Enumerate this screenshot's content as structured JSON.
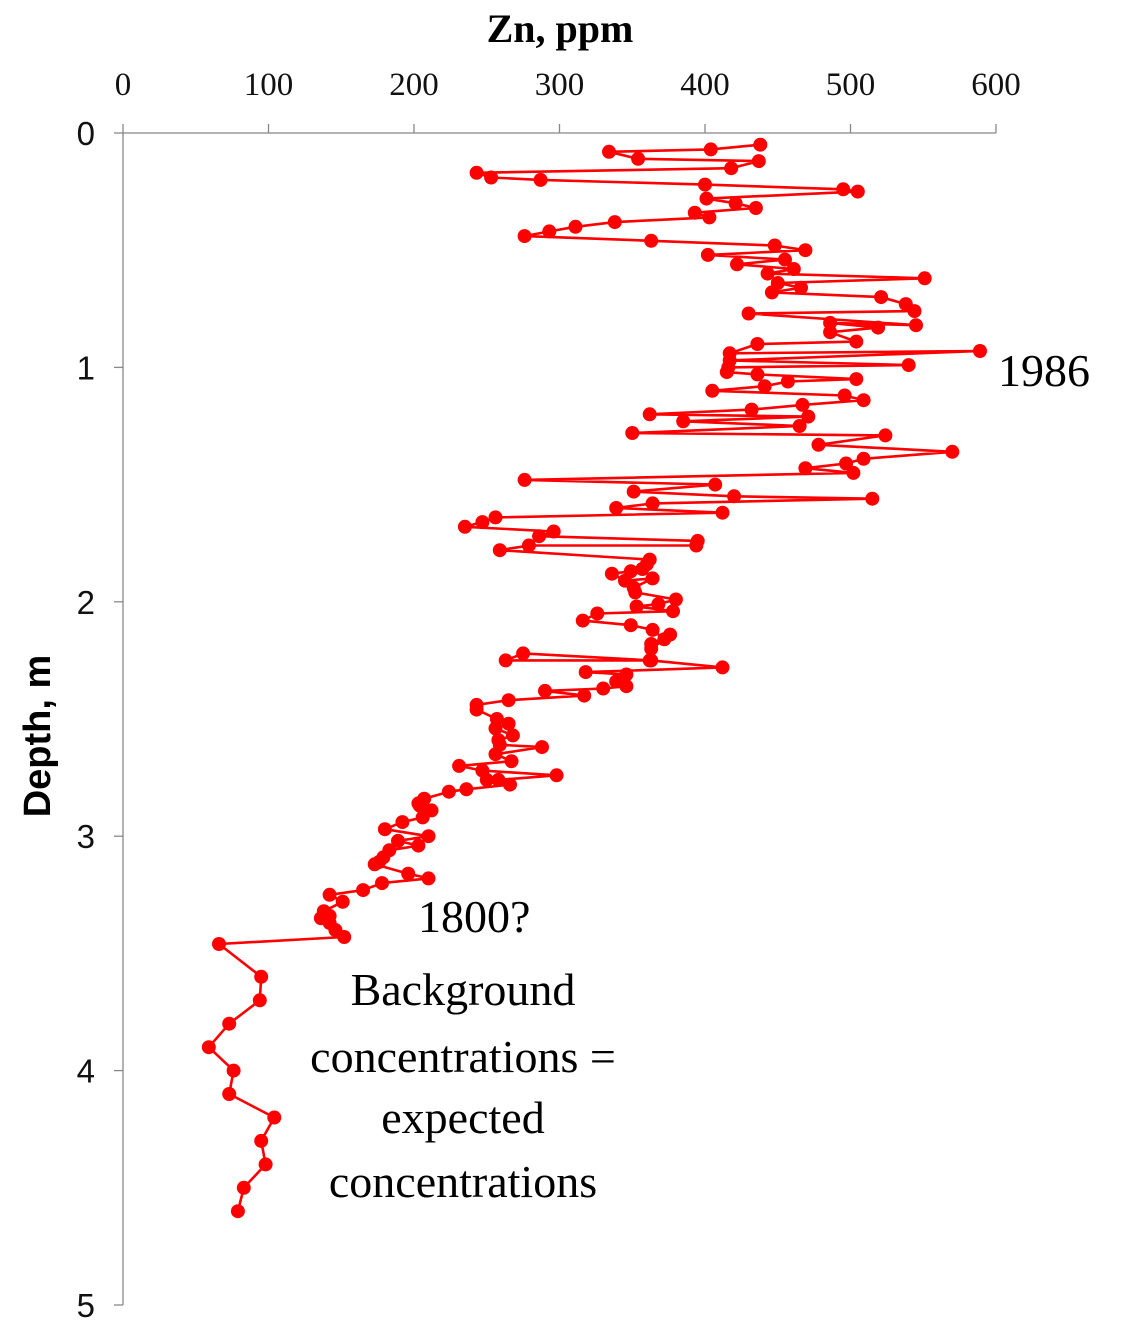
{
  "chart_data": {
    "type": "line",
    "title": "Zn, ppm",
    "xlabel": "Zn, ppm",
    "ylabel": "Depth, m",
    "xlim": [
      0,
      600
    ],
    "ylim": [
      0,
      5
    ],
    "y_inverted": true,
    "x_axis_position": "top",
    "xticks": [
      "0",
      "100",
      "200",
      "300",
      "400",
      "500",
      "600"
    ],
    "yticks": [
      "0",
      "1",
      "2",
      "3",
      "4",
      "5"
    ],
    "grid": false,
    "legend": "none",
    "series": [
      {
        "color": "#ff0000",
        "marker": "circle",
        "points": [
          [
            438,
            0.05
          ],
          [
            404,
            0.07
          ],
          [
            334,
            0.08
          ],
          [
            354,
            0.11
          ],
          [
            437,
            0.12
          ],
          [
            418,
            0.15
          ],
          [
            243,
            0.17
          ],
          [
            253,
            0.19
          ],
          [
            287,
            0.2
          ],
          [
            400,
            0.22
          ],
          [
            495,
            0.24
          ],
          [
            505,
            0.25
          ],
          [
            401,
            0.28
          ],
          [
            421,
            0.3
          ],
          [
            435,
            0.32
          ],
          [
            393,
            0.34
          ],
          [
            403,
            0.36
          ],
          [
            338,
            0.38
          ],
          [
            311,
            0.4
          ],
          [
            293,
            0.42
          ],
          [
            276,
            0.44
          ],
          [
            363,
            0.46
          ],
          [
            448,
            0.48
          ],
          [
            469,
            0.5
          ],
          [
            402,
            0.52
          ],
          [
            455,
            0.54
          ],
          [
            422,
            0.56
          ],
          [
            461,
            0.58
          ],
          [
            443,
            0.6
          ],
          [
            551,
            0.62
          ],
          [
            450,
            0.64
          ],
          [
            466,
            0.66
          ],
          [
            446,
            0.68
          ],
          [
            521,
            0.7
          ],
          [
            538,
            0.73
          ],
          [
            544,
            0.76
          ],
          [
            430,
            0.77
          ],
          [
            545,
            0.82
          ],
          [
            486,
            0.81
          ],
          [
            519,
            0.83
          ],
          [
            486,
            0.85
          ],
          [
            504,
            0.89
          ],
          [
            436,
            0.9
          ],
          [
            417,
            0.94
          ],
          [
            589,
            0.93
          ],
          [
            417,
            0.97
          ],
          [
            540,
            0.99
          ],
          [
            416,
            1.0
          ],
          [
            415,
            1.02
          ],
          [
            436,
            1.03
          ],
          [
            504,
            1.05
          ],
          [
            457,
            1.06
          ],
          [
            441,
            1.08
          ],
          [
            405,
            1.1
          ],
          [
            496,
            1.12
          ],
          [
            509,
            1.14
          ],
          [
            467,
            1.16
          ],
          [
            432,
            1.18
          ],
          [
            362,
            1.2
          ],
          [
            471,
            1.21
          ],
          [
            385,
            1.23
          ],
          [
            465,
            1.25
          ],
          [
            350,
            1.28
          ],
          [
            524,
            1.29
          ],
          [
            478,
            1.33
          ],
          [
            570,
            1.36
          ],
          [
            509,
            1.39
          ],
          [
            497,
            1.41
          ],
          [
            469,
            1.43
          ],
          [
            502,
            1.45
          ],
          [
            276,
            1.48
          ],
          [
            407,
            1.5
          ],
          [
            351,
            1.53
          ],
          [
            420,
            1.55
          ],
          [
            515,
            1.56
          ],
          [
            364,
            1.58
          ],
          [
            339,
            1.6
          ],
          [
            412,
            1.62
          ],
          [
            256,
            1.64
          ],
          [
            247,
            1.66
          ],
          [
            235,
            1.68
          ],
          [
            296,
            1.7
          ],
          [
            286,
            1.72
          ],
          [
            395,
            1.74
          ],
          [
            394,
            1.76
          ],
          [
            279,
            1.76
          ],
          [
            259,
            1.78
          ],
          [
            362,
            1.82
          ],
          [
            360,
            1.84
          ],
          [
            357,
            1.86
          ],
          [
            349,
            1.87
          ],
          [
            336,
            1.88
          ],
          [
            345,
            1.91
          ],
          [
            364,
            1.9
          ],
          [
            351,
            1.94
          ],
          [
            352,
            1.96
          ],
          [
            380,
            1.99
          ],
          [
            368,
            2.01
          ],
          [
            353,
            2.02
          ],
          [
            378,
            2.04
          ],
          [
            326,
            2.05
          ],
          [
            316,
            2.08
          ],
          [
            349,
            2.1
          ],
          [
            364,
            2.12
          ],
          [
            372,
            2.16
          ],
          [
            363,
            2.2
          ],
          [
            376,
            2.14
          ],
          [
            363,
            2.18
          ],
          [
            362,
            2.25
          ],
          [
            263,
            2.25
          ],
          [
            275,
            2.22
          ],
          [
            363,
            2.25
          ],
          [
            412,
            2.28
          ],
          [
            318,
            2.3
          ],
          [
            346,
            2.31
          ],
          [
            339,
            2.34
          ],
          [
            346,
            2.36
          ],
          [
            330,
            2.37
          ],
          [
            290,
            2.38
          ],
          [
            317,
            2.4
          ],
          [
            265,
            2.42
          ],
          [
            243,
            2.44
          ],
          [
            243,
            2.46
          ],
          [
            257,
            2.5
          ],
          [
            265,
            2.52
          ],
          [
            256,
            2.54
          ],
          [
            268,
            2.57
          ],
          [
            258,
            2.59
          ],
          [
            259,
            2.61
          ],
          [
            288,
            2.62
          ],
          [
            256,
            2.65
          ],
          [
            267,
            2.68
          ],
          [
            231,
            2.7
          ],
          [
            247,
            2.72
          ],
          [
            298,
            2.74
          ],
          [
            258,
            2.76
          ],
          [
            250,
            2.76
          ],
          [
            266,
            2.78
          ],
          [
            236,
            2.8
          ],
          [
            224,
            2.81
          ],
          [
            207,
            2.84
          ],
          [
            203,
            2.86
          ],
          [
            204,
            2.87
          ],
          [
            212,
            2.89
          ],
          [
            206,
            2.92
          ],
          [
            192,
            2.94
          ],
          [
            180,
            2.97
          ],
          [
            210,
            3.0
          ],
          [
            189,
            3.02
          ],
          [
            203,
            3.04
          ],
          [
            183,
            3.06
          ],
          [
            179,
            3.09
          ],
          [
            176,
            3.11
          ],
          [
            173,
            3.12
          ],
          [
            196,
            3.16
          ],
          [
            210,
            3.18
          ],
          [
            178,
            3.2
          ],
          [
            165,
            3.23
          ],
          [
            142,
            3.25
          ],
          [
            151,
            3.28
          ],
          [
            138,
            3.32
          ],
          [
            142,
            3.34
          ],
          [
            136,
            3.35
          ],
          [
            142,
            3.37
          ],
          [
            146,
            3.4
          ],
          [
            152,
            3.43
          ],
          [
            66,
            3.46
          ],
          [
            95,
            3.6
          ],
          [
            94,
            3.7
          ],
          [
            73,
            3.8
          ],
          [
            59,
            3.9
          ],
          [
            76,
            4.0
          ],
          [
            73,
            4.1
          ],
          [
            104,
            4.2
          ],
          [
            95,
            4.3
          ],
          [
            98,
            4.4
          ],
          [
            83,
            4.5
          ],
          [
            79,
            4.6
          ]
        ]
      }
    ],
    "annotations": [
      "1986",
      "1800?",
      "Background",
      "concentrations =",
      "expected",
      "concentrations"
    ],
    "colors": {
      "series": "#ff0000",
      "axis": "#888888"
    }
  }
}
